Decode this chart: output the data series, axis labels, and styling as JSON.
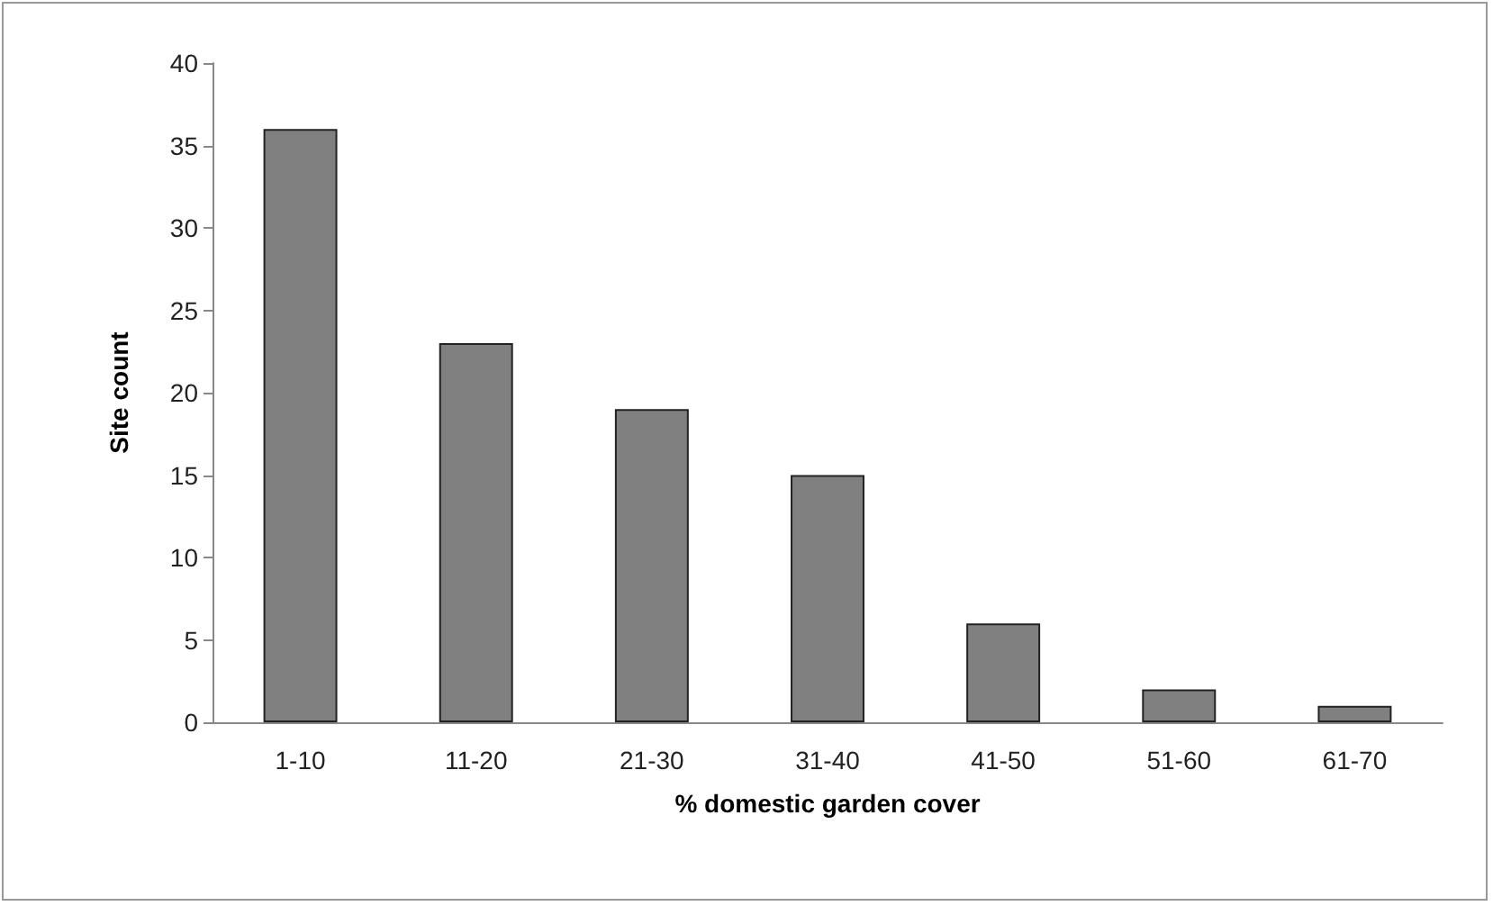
{
  "chart_data": {
    "type": "bar",
    "xlabel": "% domestic garden cover",
    "ylabel": "Site count",
    "categories": [
      "1-10",
      "11-20",
      "21-30",
      "31-40",
      "41-50",
      "51-60",
      "61-70"
    ],
    "values": [
      36,
      23,
      19,
      15,
      6,
      2,
      1
    ],
    "color": "#808080",
    "ylim": [
      0,
      40
    ],
    "yticks": [
      0,
      5,
      10,
      15,
      20,
      25,
      30,
      35,
      40
    ],
    "grid": false
  }
}
